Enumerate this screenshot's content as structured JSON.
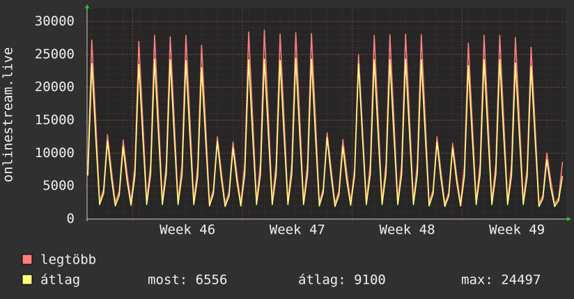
{
  "chart_data": {
    "type": "line",
    "y_label": "onlinestream.live",
    "xlim": [
      -0.3,
      30.2
    ],
    "ylim": [
      0,
      30000
    ],
    "yticks": [
      0,
      5000,
      10000,
      15000,
      20000,
      25000,
      30000
    ],
    "xticks": [
      {
        "value": 6.1,
        "label": "Week 46"
      },
      {
        "value": 13.1,
        "label": "Week 47"
      },
      {
        "value": 20.1,
        "label": "Week 48"
      },
      {
        "value": 27.1,
        "label": "Week 49"
      }
    ],
    "grid": true,
    "x": [
      -0.25,
      0,
      0.25,
      0.5,
      0.75,
      1,
      1.25,
      1.5,
      1.75,
      2,
      2.25,
      2.5,
      2.75,
      3,
      3.25,
      3.5,
      3.75,
      4,
      4.25,
      4.5,
      4.75,
      5,
      5.25,
      5.5,
      5.75,
      6,
      6.25,
      6.5,
      6.75,
      7,
      7.25,
      7.5,
      7.75,
      8,
      8.25,
      8.5,
      8.75,
      9,
      9.25,
      9.5,
      9.75,
      10,
      10.25,
      10.5,
      10.75,
      11,
      11.25,
      11.5,
      11.75,
      12,
      12.25,
      12.5,
      12.75,
      13,
      13.25,
      13.5,
      13.75,
      14,
      14.25,
      14.5,
      14.75,
      15,
      15.25,
      15.5,
      15.75,
      16,
      16.25,
      16.5,
      16.75,
      17,
      17.25,
      17.5,
      17.75,
      18,
      18.25,
      18.5,
      18.75,
      19,
      19.25,
      19.5,
      19.75,
      20,
      20.25,
      20.5,
      20.75,
      21,
      21.25,
      21.5,
      21.75,
      22,
      22.25,
      22.5,
      22.75,
      23,
      23.25,
      23.5,
      23.75,
      24,
      24.25,
      24.5,
      24.75,
      25,
      25.25,
      25.5,
      25.75,
      26,
      26.25,
      26.5,
      26.75,
      27,
      27.25,
      27.5,
      27.75,
      28,
      28.25,
      28.5,
      28.75,
      29,
      29.25,
      29.5,
      29.75,
      30
    ],
    "series": [
      {
        "name": "legtöbb",
        "color": "#ff7f7f",
        "values": [
          8000,
          27200,
          15000,
          2700,
          4500,
          12800,
          7500,
          2500,
          4200,
          12000,
          7000,
          2600,
          8000,
          27000,
          15000,
          2700,
          8300,
          27900,
          15500,
          2700,
          8300,
          27700,
          15300,
          2700,
          8300,
          27900,
          15500,
          2700,
          8000,
          26400,
          14500,
          2500,
          4400,
          12500,
          7300,
          2300,
          4100,
          11700,
          6800,
          2400,
          8500,
          28400,
          15700,
          2700,
          8600,
          28700,
          15800,
          2700,
          8400,
          28100,
          15500,
          2700,
          8500,
          28300,
          15600,
          2700,
          8500,
          28200,
          15600,
          2500,
          4600,
          13100,
          7700,
          2400,
          4200,
          12100,
          7100,
          2600,
          7500,
          25000,
          14000,
          2700,
          8400,
          27900,
          15400,
          2700,
          8400,
          28000,
          15500,
          2700,
          8400,
          28100,
          15500,
          2700,
          8400,
          28000,
          15400,
          2500,
          4400,
          12500,
          7300,
          2300,
          4000,
          11500,
          6700,
          2400,
          8000,
          26700,
          14700,
          2700,
          8400,
          27900,
          15400,
          2700,
          8400,
          27900,
          15400,
          2700,
          8300,
          27600,
          15200,
          2700,
          7800,
          26100,
          14400,
          2300,
          3600,
          10000,
          5900,
          2300,
          3200,
          8700
        ]
      },
      {
        "name": "átlag",
        "color": "#ffff80",
        "values": [
          6600,
          23600,
          12500,
          2200,
          3900,
          11900,
          6300,
          2000,
          3600,
          11000,
          5800,
          2100,
          6600,
          23500,
          12500,
          2200,
          6800,
          24300,
          12900,
          2200,
          6800,
          24200,
          12800,
          2200,
          6700,
          24100,
          12800,
          2200,
          6400,
          23000,
          12200,
          2000,
          3800,
          11800,
          6300,
          1900,
          3500,
          10800,
          5700,
          2000,
          6800,
          24200,
          12800,
          2200,
          6800,
          24300,
          12900,
          2200,
          6700,
          24100,
          12800,
          2200,
          6800,
          24400,
          12900,
          2200,
          6800,
          24300,
          12900,
          2000,
          4000,
          12400,
          6600,
          1900,
          3600,
          11000,
          5800,
          2100,
          6600,
          23600,
          12500,
          2200,
          6800,
          24200,
          12800,
          2200,
          6800,
          24200,
          12800,
          2200,
          6800,
          24300,
          12900,
          2200,
          6800,
          24200,
          12800,
          2000,
          3800,
          11700,
          6200,
          1900,
          3500,
          10800,
          5700,
          2000,
          6500,
          23300,
          12300,
          2200,
          6800,
          24200,
          12800,
          2200,
          6800,
          24200,
          12800,
          2200,
          6600,
          23700,
          12600,
          2200,
          6500,
          23200,
          12300,
          1900,
          3100,
          9000,
          4800,
          1900,
          2800,
          6556
        ]
      }
    ],
    "legend_stats": [
      "most: 6556",
      "átlag: 9100",
      "max: 24497"
    ]
  }
}
